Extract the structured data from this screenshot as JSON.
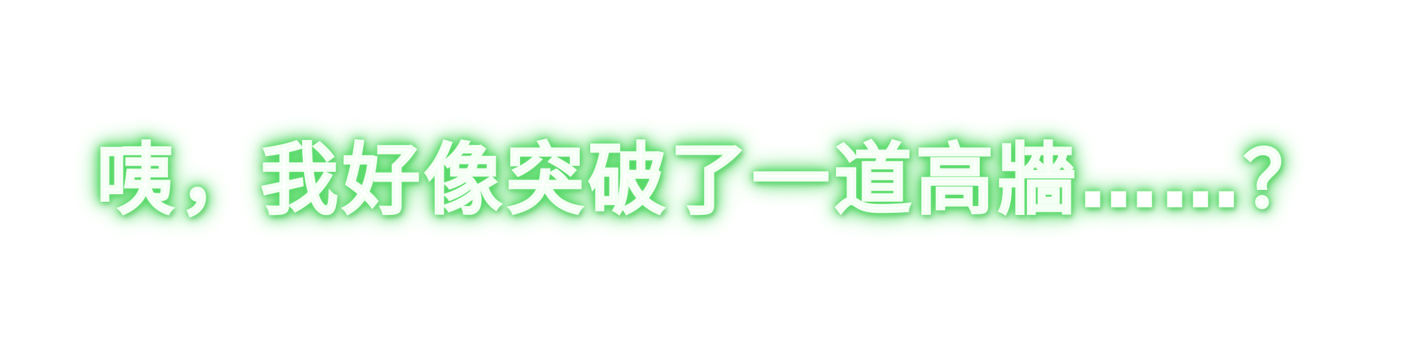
{
  "caption": {
    "text": "咦，我好像突破了一道高牆……？",
    "text_color": "#ffffff",
    "glow_color": "#4cd65e"
  },
  "background_color": "#ffffff"
}
